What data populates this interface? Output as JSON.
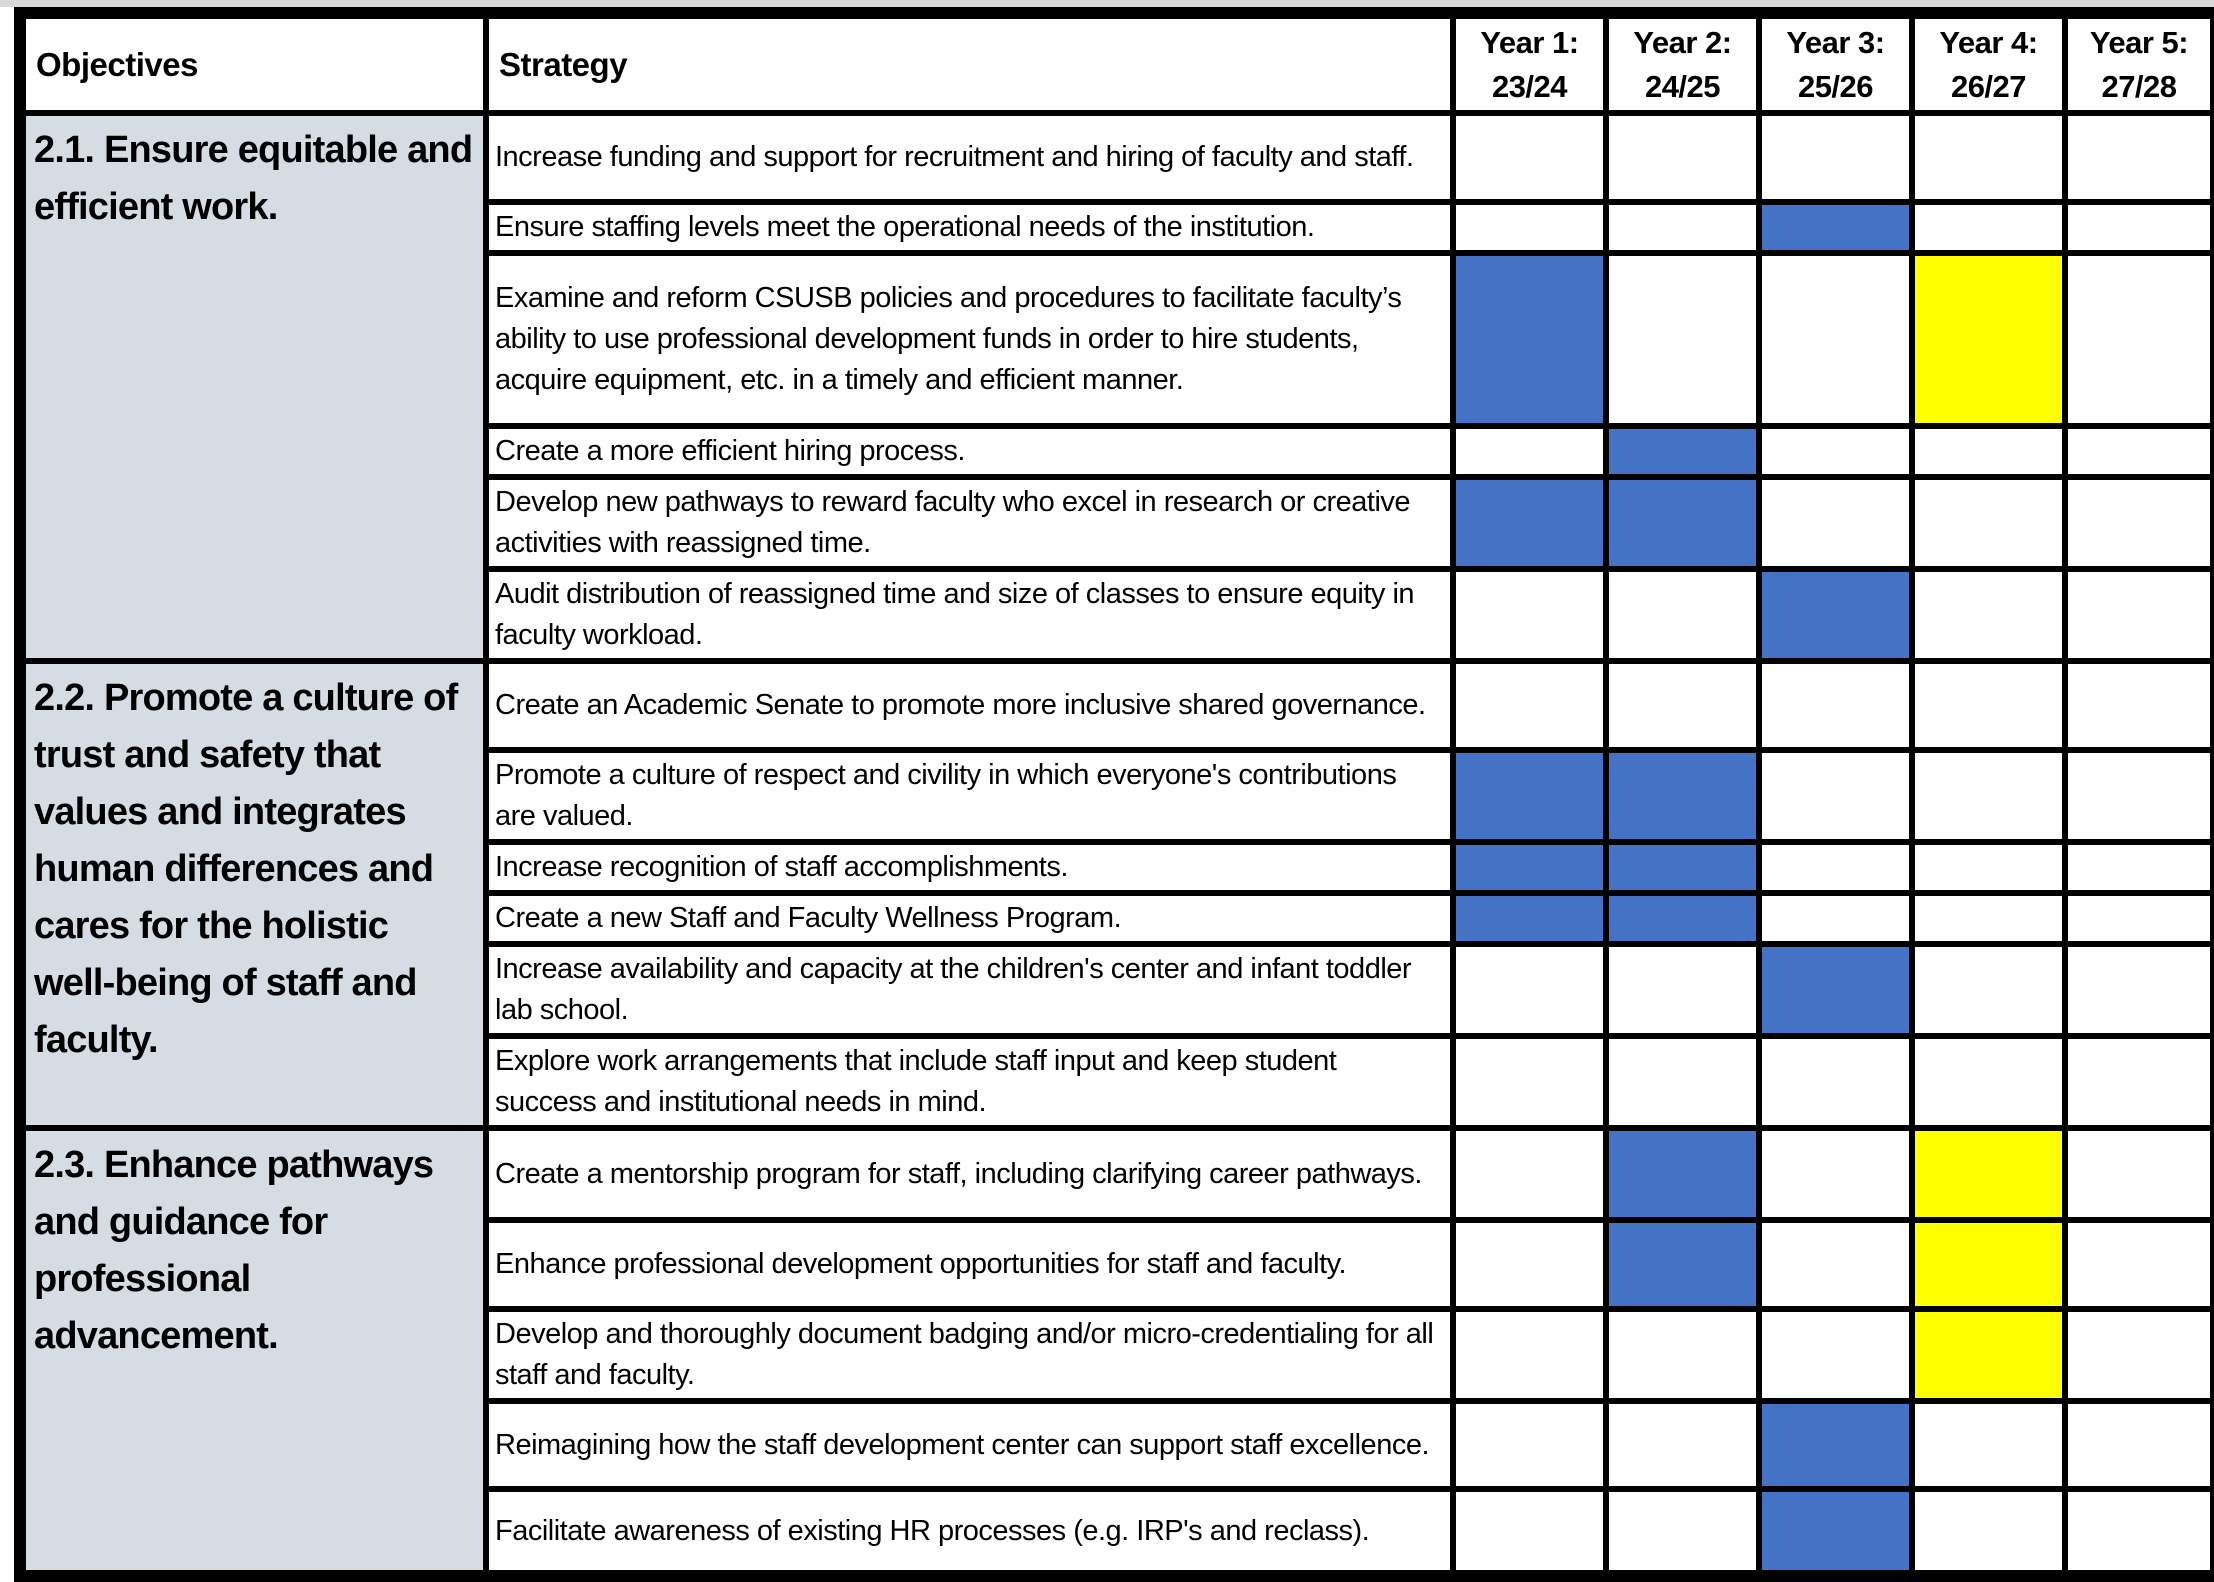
{
  "table": {
    "objectives_label": "Objectives",
    "strategy_label": "Strategy",
    "years": [
      {
        "label": "Year 1:",
        "sub": "23/24"
      },
      {
        "label": "Year 2:",
        "sub": "24/25"
      },
      {
        "label": "Year 3:",
        "sub": "25/26"
      },
      {
        "label": "Year 4:",
        "sub": "26/27"
      },
      {
        "label": "Year 5:",
        "sub": "27/28"
      }
    ]
  },
  "colors": {
    "timeline_blue": "#4472C4",
    "timeline_yellow": "#FFFF00",
    "objective_cell_bg": "#D6DCE4"
  },
  "sections": [
    {
      "objective": "2.1. Ensure equitable and efficient work.",
      "strategies": [
        {
          "text": "Increase funding and support for recruitment and hiring of faculty and staff.",
          "years": [
            "",
            "",
            "",
            "",
            ""
          ]
        },
        {
          "text": "Ensure staffing levels meet the operational needs of the institution.",
          "years": [
            "",
            "",
            "blue",
            "",
            ""
          ]
        },
        {
          "text": "Examine and reform CSUSB policies and procedures to facilitate faculty’s ability to use professional development funds in order to hire students, acquire equipment, etc. in a timely and efficient manner.",
          "years": [
            "blue",
            "",
            "",
            "yellow",
            ""
          ]
        },
        {
          "text": "Create a more efficient hiring process.",
          "years": [
            "",
            "blue",
            "",
            "",
            ""
          ]
        },
        {
          "text": "Develop new pathways to reward faculty who excel in research or creative activities with reassigned time.",
          "years": [
            "blue",
            "blue",
            "",
            "",
            ""
          ]
        },
        {
          "text": "Audit distribution of reassigned time and size of classes to ensure equity in faculty workload.",
          "years": [
            "",
            "",
            "blue",
            "",
            ""
          ]
        }
      ]
    },
    {
      "objective": "2.2. Promote a culture of trust and safety that values and integrates human differences and cares for the holistic well-being of staff and faculty.",
      "strategies": [
        {
          "text": "Create an Academic Senate to promote more inclusive shared governance.",
          "years": [
            "",
            "",
            "",
            "",
            ""
          ]
        },
        {
          "text": "Promote a culture of respect and civility in which everyone's contributions are valued.",
          "years": [
            "blue",
            "blue",
            "",
            "",
            ""
          ]
        },
        {
          "text": "Increase recognition of staff accomplishments.",
          "years": [
            "blue",
            "blue",
            "",
            "",
            ""
          ]
        },
        {
          "text": "Create a new Staff and Faculty Wellness Program.",
          "years": [
            "blue",
            "blue",
            "",
            "",
            ""
          ]
        },
        {
          "text": "Increase availability and capacity at the children's center and infant toddler lab school.",
          "years": [
            "",
            "",
            "blue",
            "",
            ""
          ]
        },
        {
          "text": "Explore work arrangements that include staff input and keep student success and institutional needs in mind.",
          "years": [
            "",
            "",
            "",
            "",
            ""
          ]
        }
      ]
    },
    {
      "objective": "2.3. Enhance pathways and guidance for professional advancement.",
      "strategies": [
        {
          "text": "Create a mentorship program for staff, including clarifying career pathways.",
          "years": [
            "",
            "blue",
            "",
            "yellow",
            ""
          ]
        },
        {
          "text": "Enhance professional development opportunities for staff and faculty.",
          "years": [
            "",
            "blue",
            "",
            "yellow",
            ""
          ]
        },
        {
          "text": "Develop and thoroughly document badging and/or micro-credentialing for all staff and faculty.",
          "years": [
            "",
            "",
            "",
            "yellow",
            ""
          ]
        },
        {
          "text": "Reimagining how the staff development center can support staff excellence.",
          "years": [
            "",
            "",
            "blue",
            "",
            ""
          ]
        },
        {
          "text": "Facilitate awareness of existing HR processes (e.g. IRP's and reclass).",
          "years": [
            "",
            "",
            "blue",
            "",
            ""
          ]
        }
      ]
    }
  ]
}
